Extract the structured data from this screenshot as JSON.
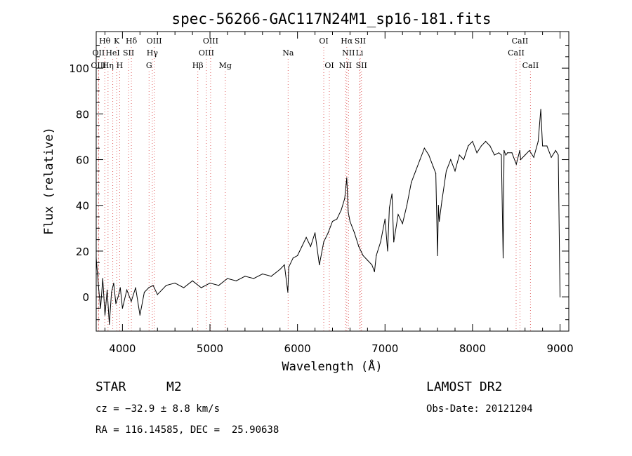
{
  "chart_data": {
    "type": "line",
    "title": "spec-56266-GAC117N24M1_sp16-181.fits",
    "xlabel": "Wavelength (Å)",
    "ylabel": "Flux (relative)",
    "xlim": [
      3700,
      9100
    ],
    "ylim": [
      -15,
      116
    ],
    "xticks": [
      4000,
      5000,
      6000,
      7000,
      8000,
      9000
    ],
    "yticks": [
      0,
      20,
      40,
      60,
      80,
      100
    ],
    "series": [
      {
        "name": "flux",
        "x": [
          3700,
          3725,
          3750,
          3775,
          3800,
          3825,
          3850,
          3875,
          3900,
          3925,
          3950,
          3975,
          4000,
          4050,
          4100,
          4150,
          4200,
          4250,
          4300,
          4350,
          4400,
          4450,
          4500,
          4600,
          4700,
          4800,
          4900,
          5000,
          5100,
          5200,
          5300,
          5400,
          5500,
          5600,
          5700,
          5800,
          5850,
          5890,
          5900,
          5950,
          6000,
          6050,
          6100,
          6150,
          6200,
          6250,
          6300,
          6350,
          6400,
          6450,
          6500,
          6540,
          6563,
          6580,
          6600,
          6650,
          6700,
          6750,
          6800,
          6850,
          6880,
          6900,
          6950,
          7000,
          7030,
          7050,
          7080,
          7100,
          7150,
          7200,
          7250,
          7300,
          7350,
          7400,
          7450,
          7500,
          7550,
          7580,
          7600,
          7610,
          7620,
          7650,
          7700,
          7750,
          7800,
          7850,
          7900,
          7950,
          8000,
          8050,
          8100,
          8150,
          8200,
          8250,
          8300,
          8330,
          8350,
          8360,
          8380,
          8400,
          8450,
          8500,
          8540,
          8550,
          8600,
          8650,
          8700,
          8750,
          8780,
          8800,
          8850,
          8900,
          8950,
          8980,
          9000
        ],
        "values": [
          17,
          5,
          -5,
          8,
          -8,
          3,
          -12,
          2,
          6,
          -3,
          0,
          4,
          -5,
          3,
          -2,
          4,
          -8,
          2,
          4,
          5,
          1,
          3,
          5,
          6,
          4,
          7,
          4,
          6,
          5,
          8,
          7,
          9,
          8,
          10,
          9,
          12,
          14,
          2,
          13,
          17,
          18,
          22,
          26,
          22,
          28,
          14,
          24,
          28,
          33,
          34,
          38,
          43,
          52,
          37,
          33,
          28,
          22,
          18,
          16,
          14,
          11,
          18,
          24,
          34,
          20,
          39,
          45,
          24,
          36,
          32,
          40,
          50,
          55,
          60,
          65,
          62,
          57,
          54,
          18,
          40,
          33,
          42,
          55,
          60,
          55,
          62,
          60,
          66,
          68,
          63,
          66,
          68,
          66,
          62,
          63,
          62,
          17,
          64,
          62,
          63,
          63,
          58,
          64,
          60,
          62,
          64,
          61,
          68,
          82,
          66,
          66,
          61,
          64,
          62,
          0
        ]
      }
    ],
    "emission_lines": [
      {
        "label": "Hθ",
        "wavelength": 3798,
        "row": 0
      },
      {
        "label": "K",
        "wavelength": 3934,
        "row": 0
      },
      {
        "label": "Hδ",
        "wavelength": 4102,
        "row": 0
      },
      {
        "label": "OIII",
        "wavelength": 4363,
        "row": 0
      },
      {
        "label": "OIII",
        "wavelength": 5007,
        "row": 0
      },
      {
        "label": "OI",
        "wavelength": 6300,
        "row": 0
      },
      {
        "label": "Hα",
        "wavelength": 6563,
        "row": 0
      },
      {
        "label": "SII",
        "wavelength": 6717,
        "row": 0
      },
      {
        "label": "CaII",
        "wavelength": 8542,
        "row": 0
      },
      {
        "label": "OII",
        "wavelength": 3727,
        "row": 1
      },
      {
        "label": "HeI",
        "wavelength": 3889,
        "row": 1
      },
      {
        "label": "SII",
        "wavelength": 4070,
        "row": 1
      },
      {
        "label": "Hγ",
        "wavelength": 4341,
        "row": 1
      },
      {
        "label": "OIII",
        "wavelength": 4959,
        "row": 1
      },
      {
        "label": "Na",
        "wavelength": 5893,
        "row": 1
      },
      {
        "label": "NII",
        "wavelength": 6583,
        "row": 1
      },
      {
        "label": "Li",
        "wavelength": 6708,
        "row": 1
      },
      {
        "label": "CaII",
        "wavelength": 8498,
        "row": 1
      },
      {
        "label": "OIII",
        "wavelength": 3727,
        "row": 2
      },
      {
        "label": "Hη",
        "wavelength": 3835,
        "row": 2
      },
      {
        "label": "H",
        "wavelength": 3968,
        "row": 2
      },
      {
        "label": "G",
        "wavelength": 4304,
        "row": 2
      },
      {
        "label": "Hβ",
        "wavelength": 4861,
        "row": 2
      },
      {
        "label": "Mg",
        "wavelength": 5175,
        "row": 2
      },
      {
        "label": "OI",
        "wavelength": 6364,
        "row": 2
      },
      {
        "label": "NII",
        "wavelength": 6548,
        "row": 2
      },
      {
        "label": "SII",
        "wavelength": 6731,
        "row": 2
      },
      {
        "label": "CaII",
        "wavelength": 8662,
        "row": 2
      }
    ]
  },
  "info": {
    "object_class": "STAR",
    "subclass": "M2",
    "survey": "LAMOST DR2",
    "redshift_text": "cz = −32.9 ± 8.8 km/s",
    "obs_date_text": "Obs-Date: 20121204",
    "coordinates_text": "RA = 116.14585, DEC =  25.90638"
  },
  "colors": {
    "spectrum": "#000000",
    "line_markers": "#e06060",
    "axes": "#000000"
  }
}
